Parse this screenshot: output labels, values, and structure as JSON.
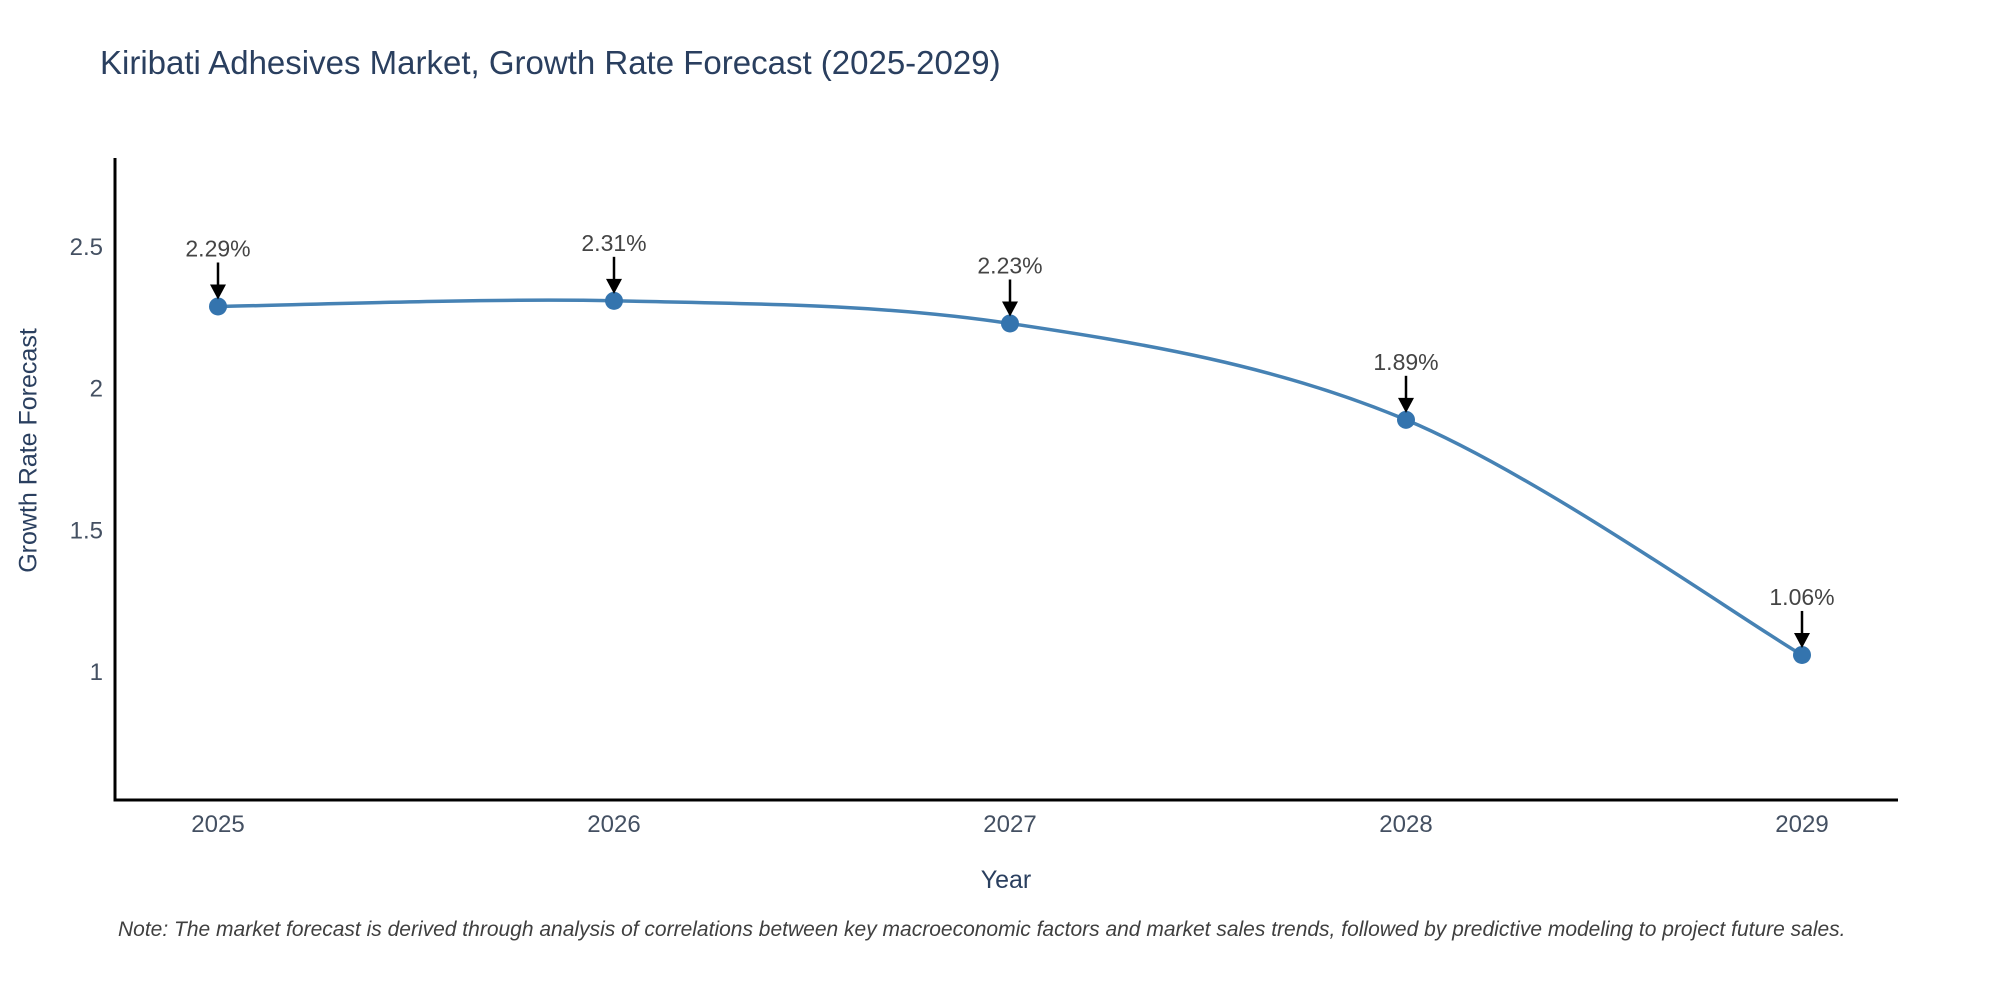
{
  "title": "Kiribati Adhesives Market, Growth Rate Forecast (2025-2029)",
  "note": "Note: The market forecast is derived through analysis of correlations between key macroeconomic factors and market sales trends, followed by predictive modeling to project future sales.",
  "chart_data": {
    "type": "line",
    "title": "Kiribati Adhesives Market, Growth Rate Forecast (2025-2029)",
    "xlabel": "Year",
    "ylabel": "Growth Rate Forecast",
    "categories": [
      "2025",
      "2026",
      "2027",
      "2028",
      "2029"
    ],
    "values": [
      2.29,
      2.31,
      2.23,
      1.89,
      1.06
    ],
    "data_labels": [
      "2.29%",
      "2.31%",
      "2.23%",
      "1.89%",
      "1.06%"
    ],
    "yticks": {
      "values": [
        2.5,
        2.0,
        1.5,
        1.0
      ],
      "labels": [
        "2.5",
        "2",
        "1.5",
        "1"
      ]
    },
    "ylim": [
      0.55,
      2.81
    ],
    "grid": false,
    "legend": "none",
    "curve": "spline",
    "annotations": "value labels with downward arrows above each point",
    "colors": {
      "line": "#4682b4",
      "marker": "#3474ae",
      "axis": "#000000",
      "arrow": "#000000",
      "title_text": "#2a3f5f",
      "tick_text": "#445062",
      "annotation_text": "#444444"
    }
  }
}
